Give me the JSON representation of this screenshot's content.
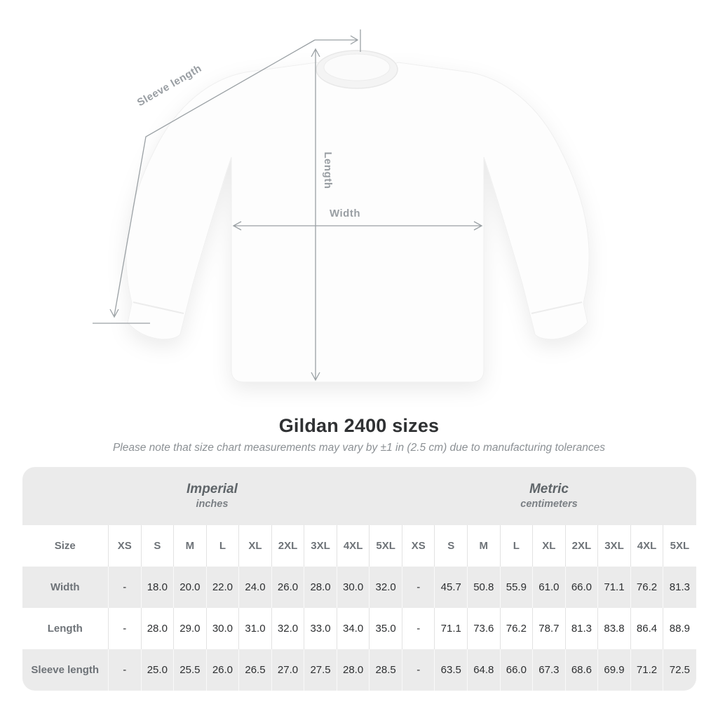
{
  "diagram": {
    "sleeve_length_label": "Sleeve length",
    "length_label": "Length",
    "width_label": "Width"
  },
  "title": "Gildan 2400 sizes",
  "subtitle": "Please note that size chart measurements may vary by ±1 in (2.5 cm) due to manufacturing tolerances",
  "table": {
    "size_header": "Size",
    "groups": [
      {
        "name": "Imperial",
        "unit": "inches"
      },
      {
        "name": "Metric",
        "unit": "centimeters"
      }
    ],
    "sizes": [
      "XS",
      "S",
      "M",
      "L",
      "XL",
      "2XL",
      "3XL",
      "4XL",
      "5XL"
    ],
    "rows": [
      {
        "label": "Width",
        "imperial": [
          "-",
          "18.0",
          "20.0",
          "22.0",
          "24.0",
          "26.0",
          "28.0",
          "30.0",
          "32.0"
        ],
        "metric": [
          "-",
          "45.7",
          "50.8",
          "55.9",
          "61.0",
          "66.0",
          "71.1",
          "76.2",
          "81.3"
        ]
      },
      {
        "label": "Length",
        "imperial": [
          "-",
          "28.0",
          "29.0",
          "30.0",
          "31.0",
          "32.0",
          "33.0",
          "34.0",
          "35.0"
        ],
        "metric": [
          "-",
          "71.1",
          "73.6",
          "76.2",
          "78.7",
          "81.3",
          "83.8",
          "86.4",
          "88.9"
        ]
      },
      {
        "label": "Sleeve length",
        "imperial": [
          "-",
          "25.0",
          "25.5",
          "26.0",
          "26.5",
          "27.0",
          "27.5",
          "28.0",
          "28.5"
        ],
        "metric": [
          "-",
          "63.5",
          "64.8",
          "66.0",
          "67.3",
          "68.6",
          "69.9",
          "71.2",
          "72.5"
        ]
      }
    ]
  },
  "colors": {
    "measure_line": "#9aa0a4",
    "table_stripe": "#ebebeb",
    "data_text": "#2d2f31",
    "header_text": "#6e7378"
  }
}
